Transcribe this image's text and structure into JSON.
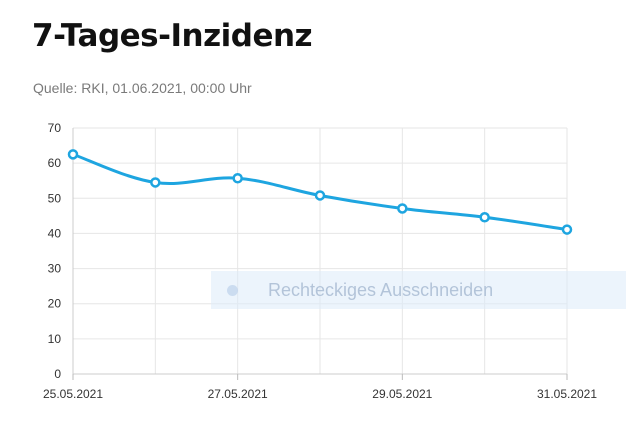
{
  "header": {
    "title": "7-Tages-Inzidenz",
    "source": "Quelle: RKI, 01.06.2021, 00:00 Uhr"
  },
  "overlay": {
    "label": "Rechteckiges Ausschneiden"
  },
  "colors": {
    "line": "#1ea5e0",
    "grid": "#e6e6e6",
    "axis_text": "#333333"
  },
  "chart_data": {
    "type": "line",
    "x": [
      "25.05.2021",
      "26.05.2021",
      "27.05.2021",
      "28.05.2021",
      "29.05.2021",
      "30.05.2021",
      "31.05.2021"
    ],
    "values": [
      62.5,
      54.5,
      55.7,
      50.8,
      47.1,
      44.6,
      41.1
    ],
    "xticks": [
      "25.05.2021",
      "27.05.2021",
      "29.05.2021",
      "31.05.2021"
    ],
    "yticks": [
      0,
      10,
      20,
      30,
      40,
      50,
      60,
      70
    ],
    "ylim": [
      0,
      70
    ],
    "grid": true,
    "legend": "none",
    "smooth": true
  }
}
